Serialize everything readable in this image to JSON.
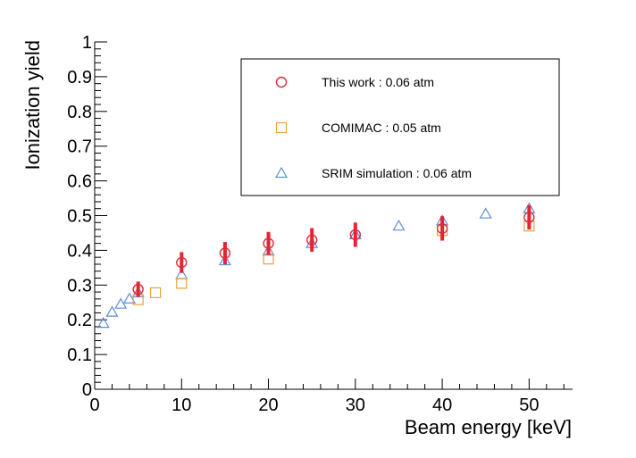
{
  "chart_data": {
    "type": "scatter",
    "title": "",
    "xlabel": "Beam energy [keV]",
    "ylabel": "Ionization yield",
    "xlim": [
      0,
      55
    ],
    "ylim": [
      0,
      1
    ],
    "x_ticks": [
      0,
      10,
      20,
      30,
      40,
      50
    ],
    "x_tick_labels": [
      "0",
      "10",
      "20",
      "30",
      "40",
      "50"
    ],
    "y_ticks": [
      0,
      0.1,
      0.2,
      0.3,
      0.4,
      0.5,
      0.6,
      0.7,
      0.8,
      0.9,
      1
    ],
    "y_tick_labels": [
      "0",
      "0.1",
      "0.2",
      "0.3",
      "0.4",
      "0.5",
      "0.6",
      "0.7",
      "0.8",
      "0.9",
      "1"
    ],
    "grid": false,
    "legend_position": "top-right",
    "series": [
      {
        "name": "SRIM simulation : 0.06 atm",
        "marker": "open-triangle",
        "color": "#5b8fd9",
        "x": [
          1,
          2,
          3,
          4,
          5,
          10,
          15,
          20,
          25,
          30,
          35,
          40,
          45,
          50
        ],
        "y": [
          0.19,
          0.222,
          0.245,
          0.26,
          0.278,
          0.33,
          0.37,
          0.398,
          0.42,
          0.445,
          0.47,
          0.485,
          0.505,
          0.52
        ]
      },
      {
        "name": "COMIMAC : 0.05 atm",
        "marker": "open-square",
        "color": "#e8a33c",
        "x": [
          5,
          7,
          10,
          20,
          40,
          50
        ],
        "y": [
          0.258,
          0.278,
          0.305,
          0.375,
          0.457,
          0.47
        ]
      },
      {
        "name": "This work : 0.06 atm",
        "marker": "open-circle",
        "color": "#d62f3d",
        "error_color": "#e8232f",
        "x": [
          5,
          10,
          15,
          20,
          25,
          30,
          40,
          50
        ],
        "y": [
          0.288,
          0.365,
          0.392,
          0.42,
          0.43,
          0.445,
          0.463,
          0.495
        ],
        "yerr": [
          0.022,
          0.03,
          0.032,
          0.033,
          0.034,
          0.035,
          0.035,
          0.035
        ]
      }
    ],
    "legend_order": [
      "This work : 0.06 atm",
      "COMIMAC : 0.05 atm",
      "SRIM simulation : 0.06 atm"
    ]
  }
}
